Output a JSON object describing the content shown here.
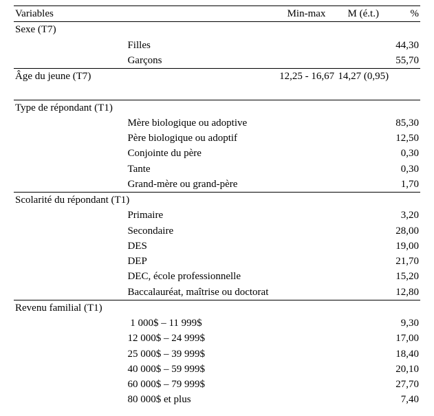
{
  "columns": {
    "variables": "Variables",
    "minmax": "Min-max",
    "m_et": "M (é.t.)",
    "pct": "%"
  },
  "sections": [
    {
      "title": "Sexe (T7)",
      "minmax": "",
      "m_et": "",
      "rows": [
        {
          "label": "Filles",
          "minmax": "",
          "m_et": "",
          "pct": "44,30"
        },
        {
          "label": "Garçons",
          "minmax": "",
          "m_et": "",
          "pct": "55,70"
        }
      ]
    },
    {
      "title": "Âge du jeune (T7)",
      "minmax": "12,25 - 16,67",
      "m_et": "14,27 (0,95)",
      "rows": []
    },
    {
      "title": "Type de répondant (T1)",
      "minmax": "",
      "m_et": "",
      "rows": [
        {
          "label": "Mère biologique ou adoptive",
          "minmax": "",
          "m_et": "",
          "pct": "85,30"
        },
        {
          "label": "Père biologique ou adoptif",
          "minmax": "",
          "m_et": "",
          "pct": "12,50"
        },
        {
          "label": "Conjointe du père",
          "minmax": "",
          "m_et": "",
          "pct": "0,30"
        },
        {
          "label": "Tante",
          "minmax": "",
          "m_et": "",
          "pct": "0,30"
        },
        {
          "label": "Grand-mère ou grand-père",
          "minmax": "",
          "m_et": "",
          "pct": "1,70"
        }
      ]
    },
    {
      "title": "Scolarité du répondant (T1)",
      "minmax": "",
      "m_et": "",
      "rows": [
        {
          "label": "Primaire",
          "minmax": "",
          "m_et": "",
          "pct": "3,20"
        },
        {
          "label": "Secondaire",
          "minmax": "",
          "m_et": "",
          "pct": "28,00"
        },
        {
          "label": "DES",
          "minmax": "",
          "m_et": "",
          "pct": "19,00"
        },
        {
          "label": "DEP",
          "minmax": "",
          "m_et": "",
          "pct": "21,70"
        },
        {
          "label": "DEC, école professionnelle",
          "minmax": "",
          "m_et": "",
          "pct": "15,20"
        },
        {
          "label": "Baccalauréat, maîtrise ou doctorat",
          "minmax": "",
          "m_et": "",
          "pct": "12,80"
        }
      ]
    },
    {
      "title": "Revenu familial (T1)",
      "minmax": "",
      "m_et": "",
      "rows": [
        {
          "label": " 1 000$ – 11 999$",
          "minmax": "",
          "m_et": "",
          "pct": "9,30"
        },
        {
          "label": "12 000$ – 24 999$",
          "minmax": "",
          "m_et": "",
          "pct": "17,00"
        },
        {
          "label": "25 000$ – 39 999$",
          "minmax": "",
          "m_et": "",
          "pct": "18,40"
        },
        {
          "label": "40 000$ – 59 999$",
          "minmax": "",
          "m_et": "",
          "pct": "20,10"
        },
        {
          "label": "60 000$ – 79 999$",
          "minmax": "",
          "m_et": "",
          "pct": "27,70"
        },
        {
          "label": "80 000$ et plus",
          "minmax": "",
          "m_et": "",
          "pct": "7,40"
        }
      ]
    }
  ],
  "style": {
    "font_family": "Times New Roman",
    "font_size_pt": 11,
    "text_color": "#000000",
    "background_color": "#ffffff",
    "rule_color": "#000000"
  }
}
